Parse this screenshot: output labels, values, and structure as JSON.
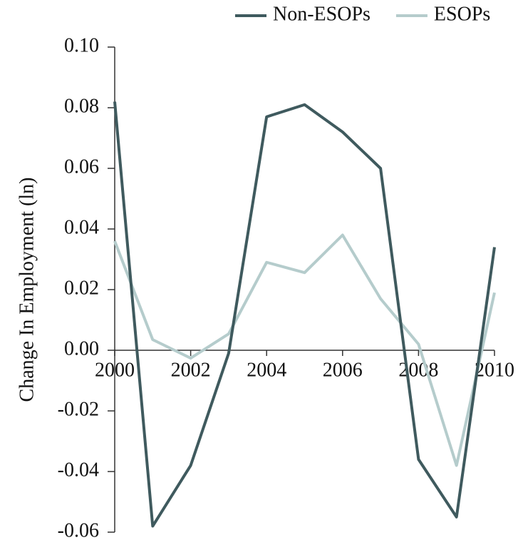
{
  "chart_data": {
    "type": "line",
    "y_label": "Change In Employment (ln)",
    "x": [
      2000,
      2001,
      2002,
      2003,
      2004,
      2005,
      2006,
      2007,
      2008,
      2009,
      2010
    ],
    "xlim": [
      2000,
      2010
    ],
    "xticks": [
      2000,
      2002,
      2004,
      2006,
      2008,
      2010
    ],
    "ylim": [
      -0.06,
      0.1
    ],
    "yticks": [
      {
        "value": -0.06,
        "label": "-0.06"
      },
      {
        "value": -0.04,
        "label": "-0.04"
      },
      {
        "value": -0.02,
        "label": "-0.02"
      },
      {
        "value": 0,
        "label": "0.00"
      },
      {
        "value": 0.02,
        "label": "0.02"
      },
      {
        "value": 0.04,
        "label": "0.04"
      },
      {
        "value": 0.06,
        "label": "0.06"
      },
      {
        "value": 0.08,
        "label": "0.08"
      },
      {
        "value": 0.1,
        "label": "0.10"
      }
    ],
    "legend": "top-right",
    "series": [
      {
        "name": "Non-ESOPs",
        "color": "#3f5a5e",
        "values": [
          0.082,
          -0.058,
          -0.038,
          -0.001,
          0.077,
          0.081,
          0.072,
          0.06,
          -0.036,
          -0.055,
          0.034
        ]
      },
      {
        "name": "ESOPs",
        "color": "#b5cccc",
        "values": [
          0.036,
          0.0035,
          -0.0026,
          0.0054,
          0.029,
          0.0256,
          0.038,
          0.017,
          0.002,
          -0.038,
          0.019
        ]
      }
    ]
  }
}
